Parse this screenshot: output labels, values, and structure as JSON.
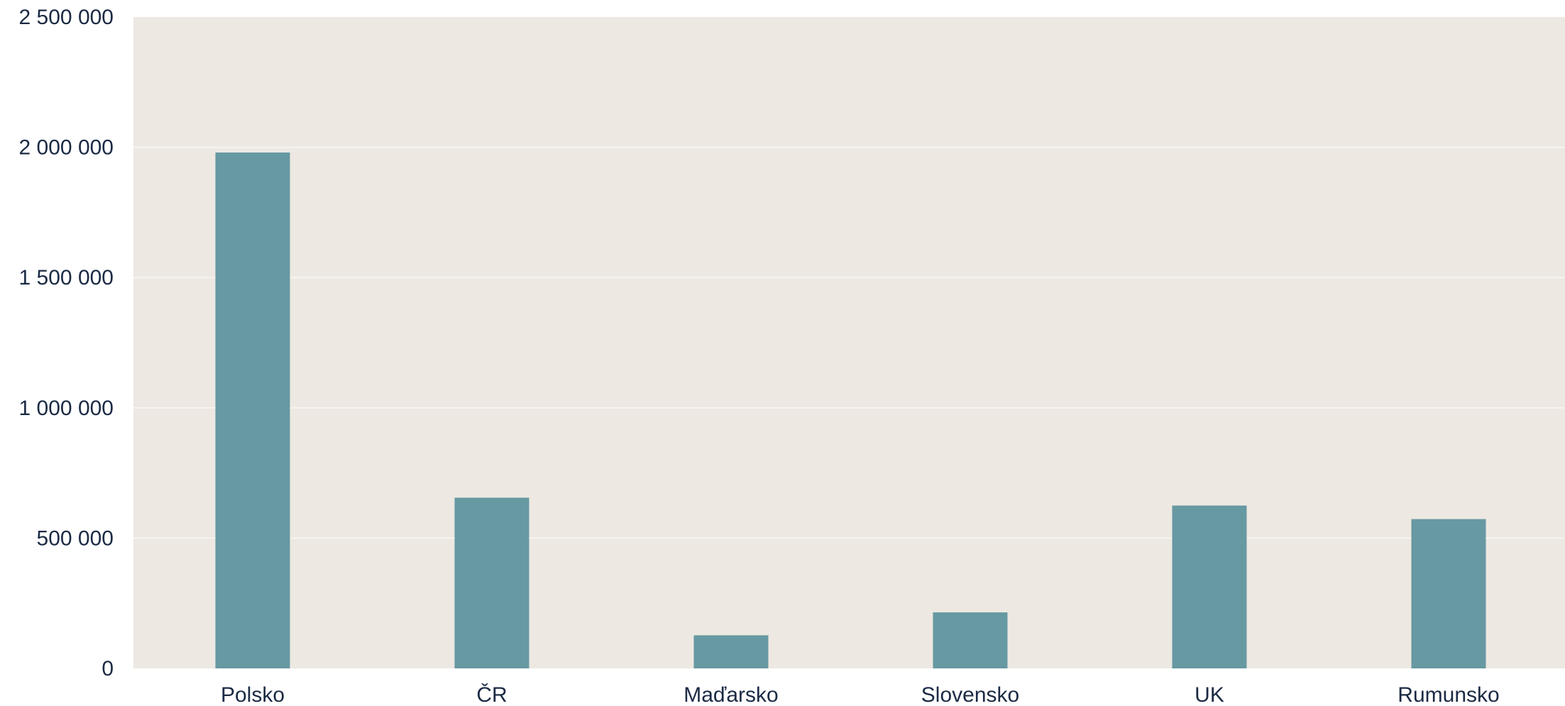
{
  "chart_data": {
    "type": "bar",
    "categories": [
      "Polsko",
      "ČR",
      "Maďarsko",
      "Slovensko",
      "UK",
      "Rumunsko"
    ],
    "values": [
      1980000,
      655000,
      127000,
      215000,
      625000,
      573000
    ],
    "yticks": [
      0,
      500000,
      1000000,
      1500000,
      2000000,
      2500000
    ],
    "ytick_labels": [
      "0",
      "500 000",
      "1 000 000",
      "1 500 000",
      "2 000 000",
      "2 500 000"
    ],
    "ylim": [
      0,
      2500000
    ],
    "grid": true,
    "legend": "none",
    "colors": {
      "bar": "#6699a2",
      "plot_bg": "#ede8e2",
      "grid": "#f7f4f0",
      "text": "#1b2a44"
    }
  }
}
